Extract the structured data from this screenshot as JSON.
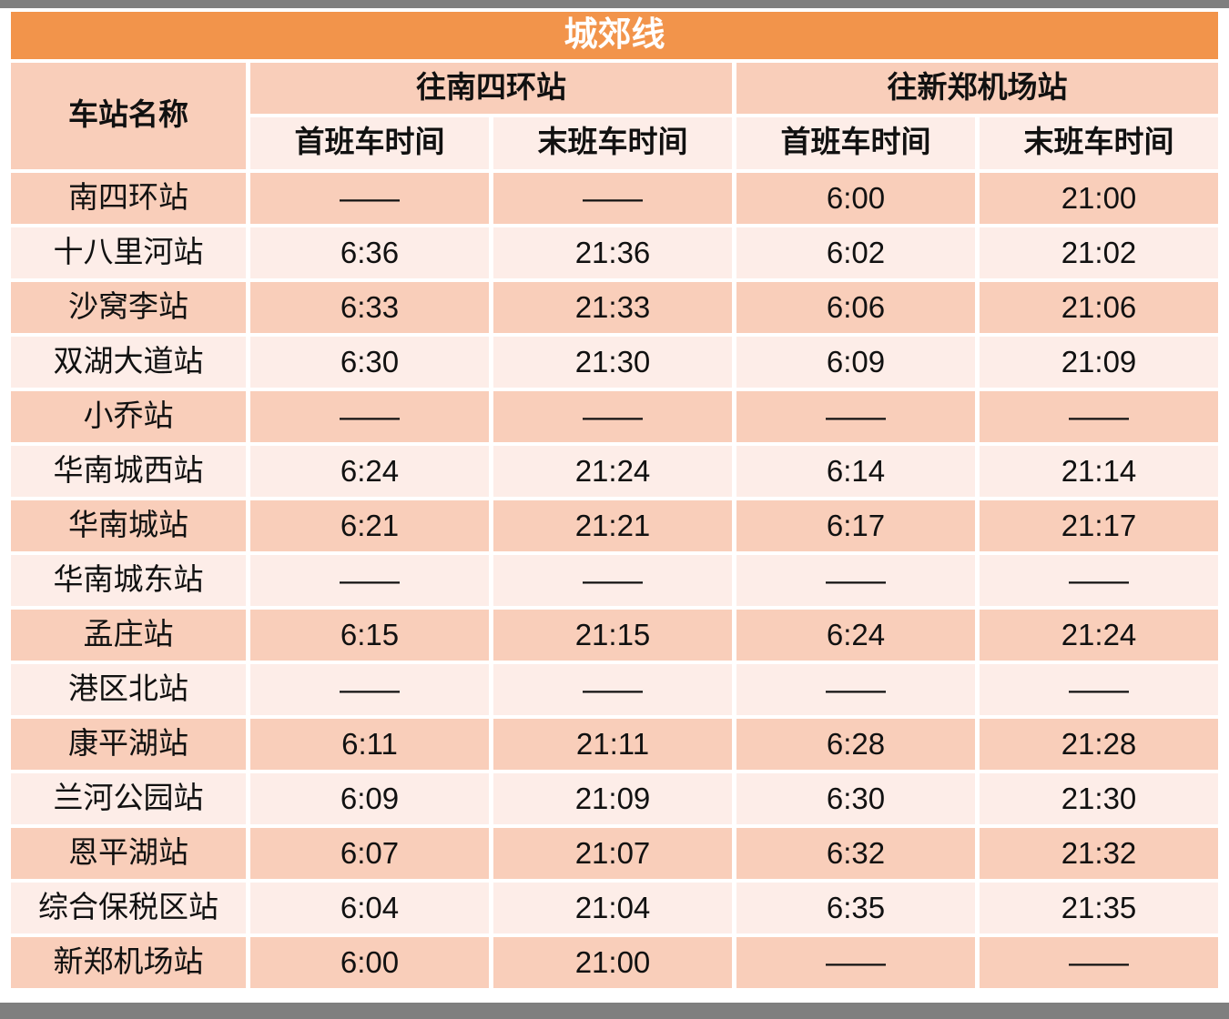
{
  "chart_data": {
    "type": "table",
    "title": "城郊线",
    "header": {
      "station_col": "车站名称",
      "direction_groups": [
        {
          "label": "往南四环站",
          "columns": [
            "首班车时间",
            "末班车时间"
          ]
        },
        {
          "label": "往新郑机场站",
          "columns": [
            "首班车时间",
            "末班车时间"
          ]
        }
      ]
    },
    "no_service_symbol": "——",
    "rows": [
      {
        "station": "南四环站",
        "times": [
          "——",
          "——",
          "6:00",
          "21:00"
        ]
      },
      {
        "station": "十八里河站",
        "times": [
          "6:36",
          "21:36",
          "6:02",
          "21:02"
        ]
      },
      {
        "station": "沙窝李站",
        "times": [
          "6:33",
          "21:33",
          "6:06",
          "21:06"
        ]
      },
      {
        "station": "双湖大道站",
        "times": [
          "6:30",
          "21:30",
          "6:09",
          "21:09"
        ]
      },
      {
        "station": "小乔站",
        "times": [
          "——",
          "——",
          "——",
          "——"
        ]
      },
      {
        "station": "华南城西站",
        "times": [
          "6:24",
          "21:24",
          "6:14",
          "21:14"
        ]
      },
      {
        "station": "华南城站",
        "times": [
          "6:21",
          "21:21",
          "6:17",
          "21:17"
        ]
      },
      {
        "station": "华南城东站",
        "times": [
          "——",
          "——",
          "——",
          "——"
        ]
      },
      {
        "station": "孟庄站",
        "times": [
          "6:15",
          "21:15",
          "6:24",
          "21:24"
        ]
      },
      {
        "station": "港区北站",
        "times": [
          "——",
          "——",
          "——",
          "——"
        ]
      },
      {
        "station": "康平湖站",
        "times": [
          "6:11",
          "21:11",
          "6:28",
          "21:28"
        ]
      },
      {
        "station": "兰河公园站",
        "times": [
          "6:09",
          "21:09",
          "6:30",
          "21:30"
        ]
      },
      {
        "station": "恩平湖站",
        "times": [
          "6:07",
          "21:07",
          "6:32",
          "21:32"
        ]
      },
      {
        "station": "综合保税区站",
        "times": [
          "6:04",
          "21:04",
          "6:35",
          "21:35"
        ]
      },
      {
        "station": "新郑机场站",
        "times": [
          "6:00",
          "21:00",
          "——",
          "——"
        ]
      }
    ]
  },
  "colors": {
    "title_bg": "#F2944B",
    "title_text": "#FFFFFF",
    "row_dark": "#F9CEBA",
    "row_light": "#FDEDE8",
    "frame_gray": "#7F7F7F",
    "body_text": "#111111"
  }
}
